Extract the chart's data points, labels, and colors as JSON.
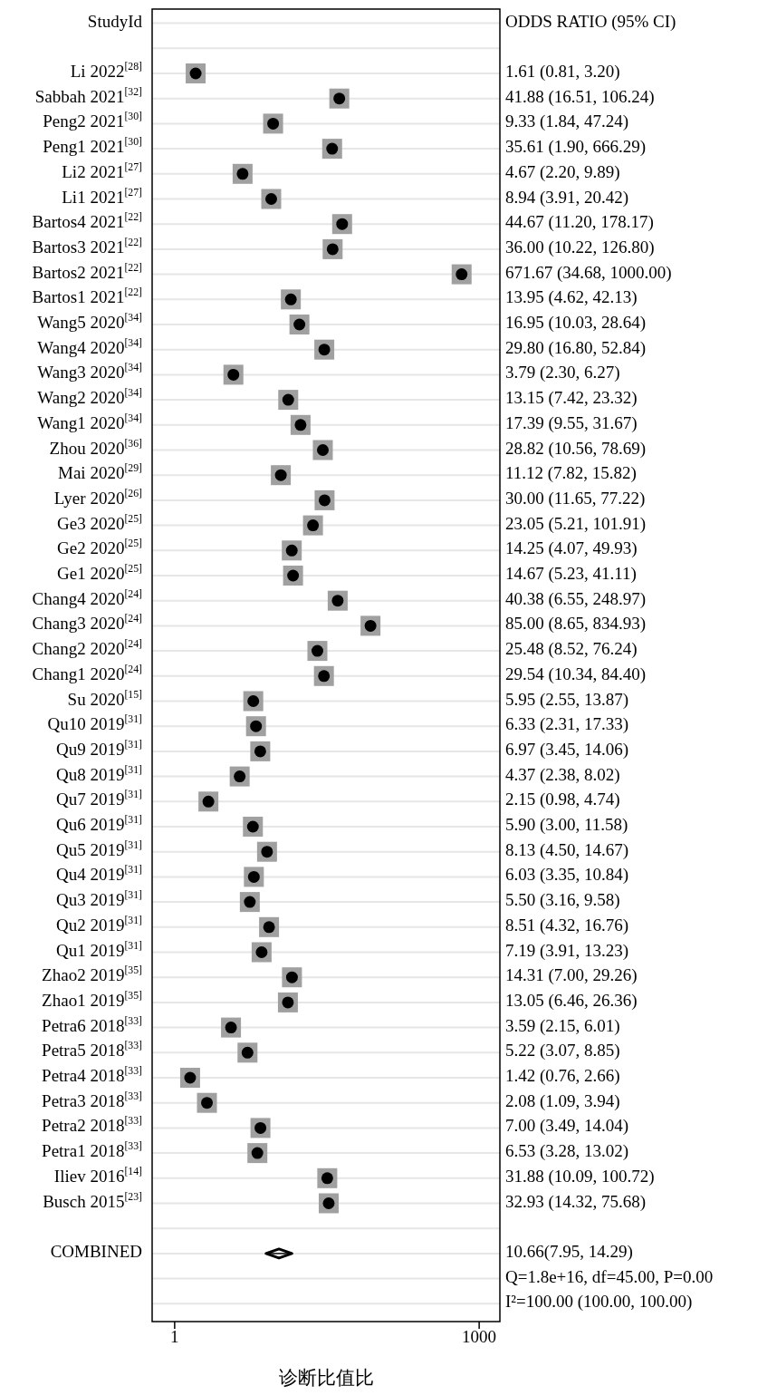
{
  "chart_data": {
    "type": "scatter",
    "orientation": "horizontal",
    "log": "x",
    "ylabel": "StudyId",
    "xlabel": "诊断比值比",
    "xlim": [
      0.6,
      1600
    ],
    "xticks": [
      1,
      1000
    ],
    "grid": "y",
    "categories": [
      "Li 2022$^{[28]}$",
      "Sabbah 2021$^{[32]}$",
      "Peng2 2021$^{[30]}$",
      "Peng1 2021$^{[30]}$",
      "Li2 2021$^{[27]}$",
      "Li1 2021$^{[27]}$",
      "Bartos4 2021$^{[22]}$",
      "Bartos3 2021$^{[22]}$",
      "Bartos2 2021$^{[22]}$",
      "Bartos1 2021$^{[22]}$",
      "Wang5 2020$^{[34]}$",
      "Wang4 2020$^{[34]}$",
      "Wang3 2020$^{[34]}$",
      "Wang2 2020$^{[34]}$",
      "Wang1 2020$^{[34]}$",
      "Zhou 2020$^{[36]}$",
      "Mai 2020$^{[29]}$",
      "Lyer 2020$^{[26]}$",
      "Ge3 2020$^{[25]}$",
      "Ge2 2020$^{[25]}$",
      "Ge1 2020$^{[25]}$",
      "Chang4 2020$^{[24]}$",
      "Chang3 2020$^{[24]}$",
      "Chang2 2020$^{[24]}$",
      "Chang1 2020$^{[24]}$",
      "Su 2020$^{[15]}$",
      "Qu10 2019$^{[31]}$",
      "Qu9 2019$^{[31]}$",
      "Qu8 2019$^{[31]}$",
      "Qu7 2019$^{[31]}$",
      "Qu6 2019$^{[31]}$",
      "Qu5 2019$^{[31]}$",
      "Qu4 2019$^{[31]}$",
      "Qu3 2019$^{[31]}$",
      "Qu2 2019$^{[31]}$",
      "Qu1 2019$^{[31]}$",
      "Zhao2 2019$^{[35]}$",
      "Zhao1 2019$^{[35]}$",
      "Petra6 2018$^{[33]}$",
      "Petra5 2018$^{[33]}$",
      "Petra4 2018$^{[33]}$",
      "Petra3 2018$^{[33]}$",
      "Petra2 2018$^{[33]}$",
      "Petra1 2018$^{[33]}$",
      "Iliev 2016$^{[14]}$",
      "Busch 2015$^{[23]}$",
      null,
      "COMBINED",
      null,
      null
    ],
    "series": [
      {
        "color": "#000000",
        "marker": "circle",
        "values": [
          1.61,
          41.88,
          9.33,
          35.61,
          4.67,
          8.94,
          44.67,
          36.0,
          671.67,
          13.95,
          16.95,
          29.8,
          3.79,
          13.15,
          17.39,
          28.82,
          11.12,
          30.0,
          23.05,
          14.25,
          14.67,
          40.38,
          85.0,
          25.48,
          29.54,
          5.95,
          6.33,
          6.97,
          4.37,
          2.15,
          5.9,
          8.13,
          6.03,
          5.5,
          8.51,
          7.19,
          14.31,
          13.05,
          3.59,
          5.22,
          1.42,
          2.08,
          7.0,
          6.53,
          31.88,
          32.93,
          null,
          null,
          null,
          null
        ]
      },
      {
        "color": "#000000",
        "marker": "diamond",
        "values": [
          null,
          null,
          null,
          null,
          null,
          null,
          null,
          null,
          null,
          null,
          null,
          null,
          null,
          null,
          null,
          null,
          null,
          null,
          null,
          null,
          null,
          null,
          null,
          null,
          null,
          null,
          null,
          null,
          null,
          null,
          null,
          null,
          null,
          null,
          null,
          null,
          null,
          null,
          null,
          null,
          null,
          null,
          null,
          null,
          null,
          null,
          null,
          10.66,
          null,
          null
        ],
        "errors": [
          null,
          null,
          null,
          null,
          null,
          null,
          null,
          null,
          null,
          null,
          null,
          null,
          null,
          null,
          null,
          null,
          null,
          null,
          null,
          null,
          null,
          null,
          null,
          null,
          null,
          null,
          null,
          null,
          null,
          null,
          null,
          null,
          null,
          null,
          null,
          null,
          null,
          null,
          null,
          null,
          null,
          null,
          null,
          null,
          null,
          null,
          null,
          [
            7.95,
            14.29
          ],
          null,
          null
        ]
      }
    ],
    "annotations": [
      "ODDS RATIO (95% CI)",
      "1.61 (0.81, 3.20)",
      "41.88 (16.51, 106.24)",
      "9.33 (1.84, 47.24)",
      "35.61 (1.90, 666.29)",
      "4.67 (2.20, 9.89)",
      "8.94 (3.91, 20.42)",
      "44.67 (11.20, 178.17)",
      "36.00 (10.22, 126.80)",
      "671.67 (34.68, 1000.00)",
      "13.95 (4.62, 42.13)",
      "16.95 (10.03, 28.64)",
      "29.80 (16.80, 52.84)",
      "3.79 (2.30, 6.27)",
      "13.15 (7.42, 23.32)",
      "17.39 (9.55, 31.67)",
      "28.82 (10.56, 78.69)",
      "11.12 (7.82, 15.82)",
      "30.00 (11.65, 77.22)",
      "23.05 (5.21, 101.91)",
      "14.25 (4.07, 49.93)",
      "14.67 (5.23, 41.11)",
      "40.38 (6.55, 248.97)",
      "85.00 (8.65, 834.93)",
      "25.48 (8.52, 76.24)",
      "29.54 (10.34, 84.40)",
      "5.95 (2.55, 13.87)",
      "6.33 (2.31, 17.33)",
      "6.97 (3.45, 14.06)",
      "4.37 (2.38, 8.02)",
      "2.15 (0.98, 4.74)",
      "5.90 (3.00, 11.58)",
      "8.13 (4.50, 14.67)",
      "6.03 (3.35, 10.84)",
      "5.50 (3.16, 9.58)",
      "8.51 (4.32, 16.76)",
      "7.19 (3.91, 13.23)",
      "14.31 (7.00, 29.26)",
      "13.05 (6.46, 26.36)",
      "3.59 (2.15, 6.01)",
      "5.22 (3.07, 8.85)",
      "1.42 (0.76, 2.66)",
      "2.08 (1.09, 3.94)",
      "7.00 (3.49, 14.04)",
      "6.53 (3.28, 13.02)",
      "31.88 (10.09, 100.72)",
      "32.93 (14.32, 75.68)",
      "10.66(7.95, 14.29)",
      "Q=1.8e+16, df=45.00, P=0.00",
      "I²=100.00 (100.00, 100.00)"
    ]
  }
}
